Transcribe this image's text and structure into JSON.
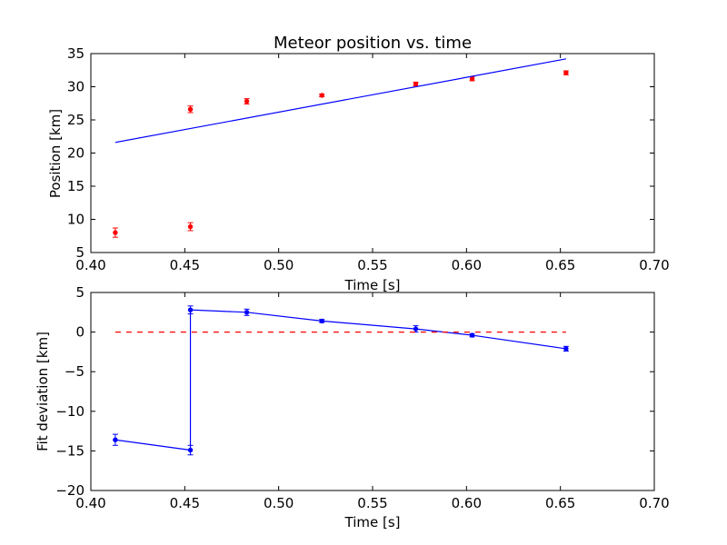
{
  "chart_data": [
    {
      "type": "scatter",
      "title": "Meteor position vs. time",
      "xlabel": "Time [s]",
      "ylabel": "Position [km]",
      "xlim": [
        0.4,
        0.7
      ],
      "ylim": [
        5,
        35
      ],
      "xticks": [
        "0.40",
        "0.45",
        "0.50",
        "0.55",
        "0.60",
        "0.65",
        "0.70"
      ],
      "yticks": [
        "5",
        "10",
        "15",
        "20",
        "25",
        "30",
        "35"
      ],
      "grid": false,
      "series": [
        {
          "style": "points-with-errorbars",
          "color": "#ff0000",
          "points": [
            {
              "x": 0.413,
              "y": 8.0,
              "err": 0.7
            },
            {
              "x": 0.453,
              "y": 8.9,
              "err": 0.6
            },
            {
              "x": 0.453,
              "y": 26.6,
              "err": 0.5
            },
            {
              "x": 0.483,
              "y": 27.8,
              "err": 0.4
            },
            {
              "x": 0.523,
              "y": 28.7,
              "err": 0.2
            },
            {
              "x": 0.573,
              "y": 30.4,
              "err": 0.3
            },
            {
              "x": 0.603,
              "y": 31.2,
              "err": 0.3
            },
            {
              "x": 0.653,
              "y": 32.1,
              "err": 0.3
            }
          ]
        },
        {
          "style": "line",
          "color": "#0000ff",
          "points": [
            {
              "x": 0.413,
              "y": 21.6
            },
            {
              "x": 0.653,
              "y": 34.2
            }
          ]
        }
      ]
    },
    {
      "type": "line",
      "title": "",
      "xlabel": "Time [s]",
      "ylabel": "Fit deviation [km]",
      "xlim": [
        0.4,
        0.7
      ],
      "ylim": [
        -20,
        5
      ],
      "xticks": [
        "0.40",
        "0.45",
        "0.50",
        "0.55",
        "0.60",
        "0.65",
        "0.70"
      ],
      "yticks": [
        "5",
        "0",
        "−5",
        "−10",
        "−15",
        "−20"
      ],
      "grid": false,
      "series": [
        {
          "style": "line-with-points-and-errorbars",
          "color": "#0000ff",
          "points": [
            {
              "x": 0.413,
              "y": -13.6,
              "err": 0.7
            },
            {
              "x": 0.453,
              "y": -14.9,
              "err": 0.6
            },
            {
              "x": 0.453,
              "y": 2.8,
              "err": 0.5
            },
            {
              "x": 0.483,
              "y": 2.5,
              "err": 0.4
            },
            {
              "x": 0.523,
              "y": 1.4,
              "err": 0.2
            },
            {
              "x": 0.573,
              "y": 0.4,
              "err": 0.4
            },
            {
              "x": 0.603,
              "y": -0.4,
              "err": 0.2
            },
            {
              "x": 0.653,
              "y": -2.1,
              "err": 0.3
            }
          ]
        },
        {
          "style": "dashed-line",
          "color": "#ff0000",
          "points": [
            {
              "x": 0.413,
              "y": 0
            },
            {
              "x": 0.653,
              "y": 0
            }
          ]
        }
      ]
    }
  ]
}
